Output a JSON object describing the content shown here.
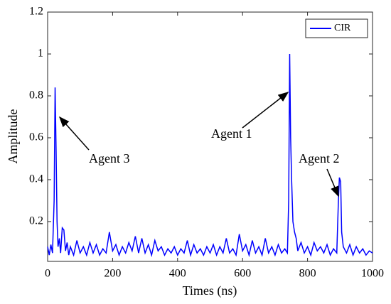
{
  "chart_data": {
    "type": "line",
    "xlabel": "Times (ns)",
    "ylabel": "Amplitude",
    "x": [
      0,
      5,
      10,
      15,
      20,
      23,
      26,
      29,
      32,
      36,
      40,
      45,
      50,
      55,
      60,
      65,
      70,
      80,
      90,
      100,
      110,
      120,
      130,
      140,
      150,
      160,
      170,
      180,
      190,
      200,
      210,
      220,
      230,
      240,
      250,
      260,
      270,
      280,
      290,
      300,
      310,
      320,
      330,
      340,
      350,
      360,
      370,
      380,
      390,
      400,
      410,
      420,
      430,
      440,
      450,
      460,
      470,
      480,
      490,
      500,
      510,
      520,
      530,
      540,
      550,
      560,
      570,
      580,
      590,
      600,
      610,
      620,
      630,
      640,
      650,
      660,
      670,
      680,
      690,
      700,
      710,
      720,
      730,
      738,
      742,
      745,
      748,
      751,
      755,
      760,
      765,
      770,
      780,
      790,
      800,
      810,
      820,
      830,
      840,
      850,
      860,
      870,
      880,
      890,
      895,
      898,
      902,
      905,
      910,
      920,
      930,
      940,
      950,
      960,
      970,
      980,
      990,
      1000
    ],
    "series": [
      {
        "name": "CIR",
        "color": "#0000ff",
        "values": [
          0.08,
          0.04,
          0.09,
          0.05,
          0.3,
          0.84,
          0.55,
          0.2,
          0.08,
          0.12,
          0.05,
          0.17,
          0.16,
          0.06,
          0.1,
          0.04,
          0.08,
          0.04,
          0.11,
          0.05,
          0.08,
          0.04,
          0.1,
          0.05,
          0.09,
          0.04,
          0.07,
          0.05,
          0.15,
          0.06,
          0.09,
          0.04,
          0.08,
          0.05,
          0.1,
          0.06,
          0.13,
          0.05,
          0.12,
          0.05,
          0.09,
          0.04,
          0.11,
          0.06,
          0.08,
          0.04,
          0.07,
          0.05,
          0.08,
          0.04,
          0.07,
          0.05,
          0.11,
          0.04,
          0.09,
          0.05,
          0.07,
          0.04,
          0.08,
          0.05,
          0.09,
          0.04,
          0.08,
          0.05,
          0.12,
          0.05,
          0.07,
          0.04,
          0.14,
          0.06,
          0.09,
          0.04,
          0.11,
          0.05,
          0.08,
          0.04,
          0.12,
          0.05,
          0.08,
          0.04,
          0.09,
          0.05,
          0.07,
          0.05,
          0.3,
          1.0,
          0.6,
          0.4,
          0.2,
          0.15,
          0.12,
          0.06,
          0.1,
          0.05,
          0.08,
          0.04,
          0.1,
          0.06,
          0.08,
          0.05,
          0.09,
          0.04,
          0.07,
          0.05,
          0.3,
          0.41,
          0.39,
          0.15,
          0.08,
          0.05,
          0.09,
          0.04,
          0.08,
          0.05,
          0.07,
          0.04,
          0.06,
          0.05
        ]
      }
    ],
    "xlim": [
      0,
      1000
    ],
    "xticks": [
      0,
      200,
      400,
      600,
      800,
      1000
    ],
    "ylim": [
      0.01,
      1.2
    ],
    "yticks": [
      0.2,
      0.4,
      0.6,
      0.8,
      1,
      1.2
    ],
    "legend": "upper right",
    "annotations": [
      "Agent 3",
      "Agent 1",
      "Agent 2"
    ]
  }
}
